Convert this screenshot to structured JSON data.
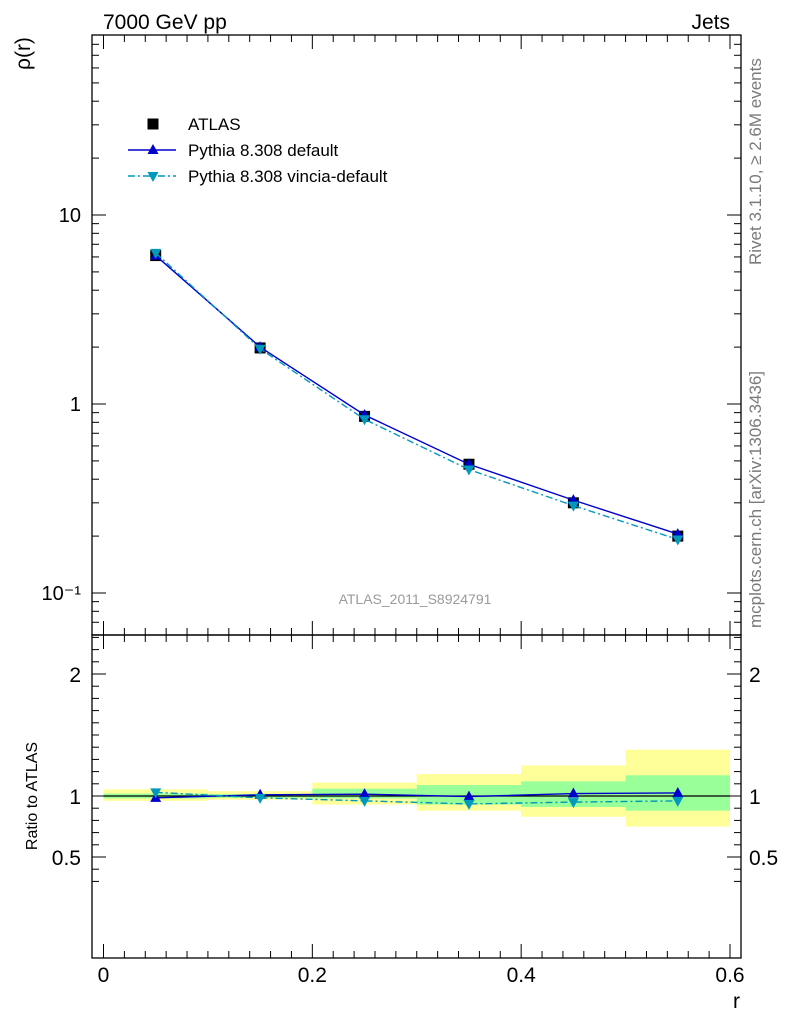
{
  "header": {
    "left": "7000 GeV pp",
    "right": "Jets"
  },
  "side_labels": {
    "rivet": "Rivet 3.1.10, ≥ 2.6M events",
    "mcplots": "mcplots.cern.ch [arXiv:1306.3436]"
  },
  "watermark": "ATLAS_2011_S8924791",
  "colors": {
    "atlas": "#000000",
    "default": "#0000cc",
    "vincia": "#0099bb",
    "band_inner": "#99ff99",
    "band_outer": "#ffff99"
  },
  "chart_data": [
    {
      "type": "line",
      "scale": "log",
      "ylabel": "ρ(r)",
      "xlim": [
        0,
        0.6
      ],
      "ylim": [
        0.065,
        80
      ],
      "y_ticks": [
        "10⁻¹",
        "1",
        "10"
      ],
      "legend_position": "top-left",
      "series": [
        {
          "name": "ATLAS",
          "marker": "square",
          "style": "none",
          "x": [
            0.05,
            0.15,
            0.25,
            0.35,
            0.45,
            0.55
          ],
          "y": [
            6.1,
            1.98,
            0.86,
            0.48,
            0.3,
            0.2
          ]
        },
        {
          "name": "Pythia 8.308 default",
          "marker": "triangle-up",
          "style": "solid",
          "x": [
            0.05,
            0.15,
            0.25,
            0.35,
            0.45,
            0.55
          ],
          "y": [
            6.1,
            2.0,
            0.875,
            0.48,
            0.31,
            0.205
          ]
        },
        {
          "name": "Pythia 8.308 vincia-default",
          "marker": "triangle-down",
          "style": "dashdot",
          "x": [
            0.05,
            0.15,
            0.25,
            0.35,
            0.45,
            0.55
          ],
          "y": [
            6.3,
            1.96,
            0.83,
            0.45,
            0.29,
            0.192
          ]
        }
      ]
    },
    {
      "type": "line",
      "xlabel": "r",
      "ylabel": "Ratio to ATLAS",
      "xlim": [
        0,
        0.6
      ],
      "ylim": [
        0.3,
        2.3
      ],
      "y_ticks": [
        0.5,
        1,
        2
      ],
      "x_ticks": [
        0,
        0.2,
        0.4,
        0.6
      ],
      "bands": {
        "bins": [
          [
            0,
            0.1
          ],
          [
            0.1,
            0.2
          ],
          [
            0.2,
            0.3
          ],
          [
            0.3,
            0.4
          ],
          [
            0.4,
            0.5
          ],
          [
            0.5,
            0.6
          ]
        ],
        "inner": [
          [
            0.98,
            1.02
          ],
          [
            0.985,
            1.015
          ],
          [
            0.98,
            1.06
          ],
          [
            0.93,
            1.09
          ],
          [
            0.91,
            1.12
          ],
          [
            0.88,
            1.17
          ]
        ],
        "outer": [
          [
            0.96,
            1.055
          ],
          [
            0.97,
            1.04
          ],
          [
            0.93,
            1.11
          ],
          [
            0.88,
            1.18
          ],
          [
            0.83,
            1.25
          ],
          [
            0.75,
            1.38
          ]
        ]
      },
      "series": [
        {
          "name": "Pythia 8.308 default",
          "marker": "triangle-up",
          "style": "solid",
          "x": [
            0.05,
            0.15,
            0.25,
            0.35,
            0.45,
            0.55
          ],
          "y": [
            0.985,
            1.01,
            1.015,
            0.995,
            1.02,
            1.025
          ]
        },
        {
          "name": "Pythia 8.308 vincia-default",
          "marker": "triangle-down",
          "style": "dashdot",
          "x": [
            0.05,
            0.15,
            0.25,
            0.35,
            0.45,
            0.55
          ],
          "y": [
            1.03,
            0.985,
            0.96,
            0.935,
            0.95,
            0.96
          ]
        }
      ]
    }
  ]
}
